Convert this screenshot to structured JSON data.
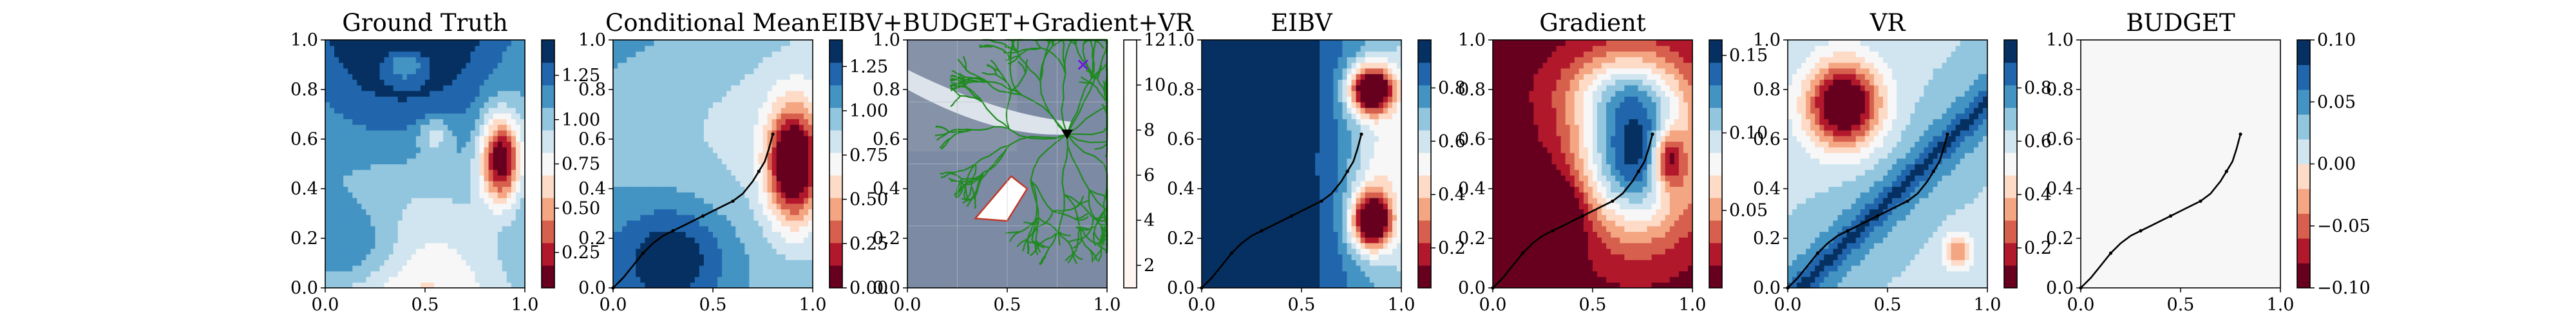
{
  "figure": {
    "panels": [
      {
        "key": "gt",
        "title": "Ground Truth",
        "colorbar": {
          "ticks": [
            "0.25",
            "0.50",
            "0.75",
            "1.00",
            "1.25"
          ],
          "range": [
            0.05,
            1.45
          ]
        },
        "xticks": [
          "0.0",
          "0.5",
          "1.0"
        ],
        "yticks": [
          "0.0",
          "0.2",
          "0.4",
          "0.6",
          "0.8",
          "1.0"
        ],
        "has_path": false
      },
      {
        "key": "cm",
        "title": "Conditional Mean",
        "colorbar": {
          "ticks": [
            "0.00",
            "0.25",
            "0.50",
            "0.75",
            "1.00",
            "1.25"
          ],
          "range": [
            0.0,
            1.4
          ]
        },
        "xticks": [
          "0.0",
          "0.5",
          "1.0"
        ],
        "yticks": [
          "0.0",
          "0.2",
          "0.4",
          "0.6",
          "0.8",
          "1.0"
        ],
        "has_path": true
      },
      {
        "key": "combo",
        "title": "EIBV+BUDGET+Gradient+VR",
        "colorbar": {
          "ticks": [
            "2",
            "4",
            "6",
            "8",
            "10",
            "12"
          ],
          "range": [
            1,
            12
          ]
        },
        "xticks": [
          "0.0",
          "0.5",
          "1.0"
        ],
        "yticks": [
          "0.0",
          "0.2",
          "0.4",
          "0.6",
          "0.8",
          "1.0"
        ],
        "has_path": false
      },
      {
        "key": "eibv",
        "title": "EIBV",
        "colorbar": {
          "ticks": [
            "0.2",
            "0.4",
            "0.6",
            "0.8"
          ],
          "range": [
            0.05,
            0.98
          ]
        },
        "xticks": [
          "0.0",
          "0.5",
          "1.0"
        ],
        "yticks": [
          "0.0",
          "0.2",
          "0.4",
          "0.6",
          "0.8",
          "1.0"
        ],
        "has_path": true
      },
      {
        "key": "grad",
        "title": "Gradient",
        "colorbar": {
          "ticks": [
            "0.05",
            "0.10",
            "0.15"
          ],
          "range": [
            0.0,
            0.16
          ]
        },
        "xticks": [
          "0.0",
          "0.5",
          "1.0"
        ],
        "yticks": [
          "0.0",
          "0.2",
          "0.4",
          "0.6",
          "0.8",
          "1.0"
        ],
        "has_path": true
      },
      {
        "key": "vr",
        "title": "VR",
        "colorbar": {
          "ticks": [
            "0.2",
            "0.4",
            "0.6",
            "0.8"
          ],
          "range": [
            0.05,
            0.98
          ]
        },
        "xticks": [
          "0.0",
          "0.5",
          "1.0"
        ],
        "yticks": [
          "0.0",
          "0.2",
          "0.4",
          "0.6",
          "0.8",
          "1.0"
        ],
        "has_path": true
      },
      {
        "key": "budget",
        "title": "BUDGET",
        "colorbar": {
          "ticks": [
            "−0.10",
            "−0.05",
            "0.00",
            "0.05",
            "0.10"
          ],
          "range": [
            -0.1,
            0.1
          ]
        },
        "xticks": [
          "0.0",
          "0.5",
          "1.0"
        ],
        "yticks": [
          "0.0",
          "0.2",
          "0.4",
          "0.6",
          "0.8",
          "1.0"
        ],
        "has_path": true
      }
    ],
    "colormap": [
      "#67001f",
      "#b2182b",
      "#d6604d",
      "#f4a582",
      "#fddbc7",
      "#f7f7f7",
      "#d1e5f0",
      "#92c5de",
      "#4393c3",
      "#2166ac",
      "#053061"
    ],
    "path_color": "#000000"
  },
  "chart_data": {
    "type": "heatmap",
    "xlim": [
      0,
      1
    ],
    "ylim": [
      0,
      1
    ],
    "grid": false,
    "panel_titles": [
      "Ground Truth",
      "Conditional Mean",
      "EIBV+BUDGET+Gradient+VR",
      "EIBV",
      "Gradient",
      "VR",
      "BUDGET"
    ],
    "path": {
      "x": [
        0.0,
        0.05,
        0.1,
        0.15,
        0.2,
        0.25,
        0.3,
        0.35,
        0.4,
        0.45,
        0.5,
        0.55,
        0.6,
        0.65,
        0.7,
        0.73,
        0.76,
        0.78,
        0.8
      ],
      "y": [
        0.0,
        0.04,
        0.09,
        0.14,
        0.18,
        0.21,
        0.23,
        0.25,
        0.27,
        0.29,
        0.31,
        0.33,
        0.35,
        0.38,
        0.43,
        0.47,
        0.51,
        0.56,
        0.62
      ]
    },
    "current_location": [
      0.8,
      0.62
    ],
    "target_marker": [
      0.88,
      0.9
    ]
  }
}
